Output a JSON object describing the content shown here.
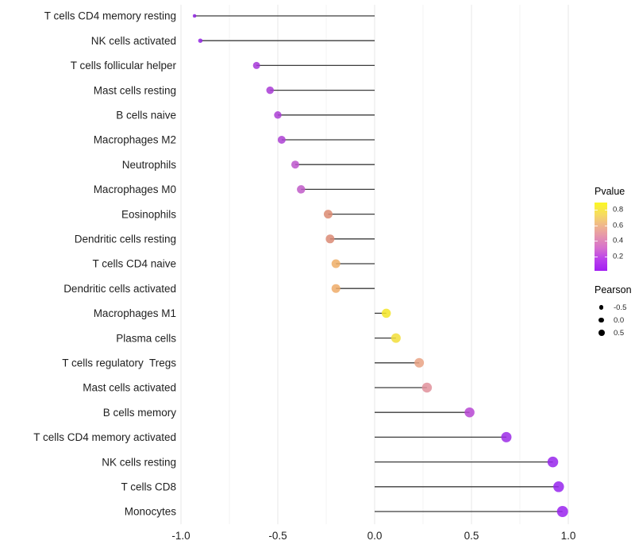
{
  "chart_data": {
    "type": "lollipop",
    "orientation": "horizontal",
    "title": "",
    "xlabel": "",
    "ylabel": "",
    "x_axis": {
      "range": [
        -1.07,
        1.07
      ],
      "major_ticks": [
        -1.0,
        -0.5,
        0.0,
        0.5,
        1.0
      ],
      "tick_labels": [
        "-1.0",
        "-0.5",
        "0.0",
        "0.5",
        "1.0"
      ],
      "minor_ticks": [
        -0.75,
        -0.25,
        0.25,
        0.75
      ]
    },
    "grid": "vertical major and minor gridlines only, light gray on white",
    "points": [
      {
        "label": "T cells CD4 memory resting",
        "pearson": -0.93,
        "color": "#8E22DF",
        "size": 4.5
      },
      {
        "label": "NK cells activated",
        "pearson": -0.9,
        "color": "#9326E3",
        "size": 5.5
      },
      {
        "label": "T cells follicular helper",
        "pearson": -0.61,
        "color": "#A637D8",
        "size": 9
      },
      {
        "label": "Mast cells resting",
        "pearson": -0.54,
        "color": "#A93BD6",
        "size": 9.5
      },
      {
        "label": "B cells naive",
        "pearson": -0.5,
        "color": "#AB3ED5",
        "size": 9.5
      },
      {
        "label": "Macrophages M2",
        "pearson": -0.48,
        "color": "#AD41D4",
        "size": 10
      },
      {
        "label": "Neutrophils",
        "pearson": -0.41,
        "color": "#BC55CB",
        "size": 10
      },
      {
        "label": "Macrophages M0",
        "pearson": -0.38,
        "color": "#C05AC8",
        "size": 10.5
      },
      {
        "label": "Eosinophils",
        "pearson": -0.24,
        "color": "#DC8B72",
        "size": 11
      },
      {
        "label": "Dendritic cells resting",
        "pearson": -0.23,
        "color": "#DB8A74",
        "size": 11
      },
      {
        "label": "T cells CD4 naive",
        "pearson": -0.2,
        "color": "#EFAE66",
        "size": 11
      },
      {
        "label": "Dendritic cells activated",
        "pearson": -0.2,
        "color": "#EEAC68",
        "size": 11
      },
      {
        "label": "Macrophages M1",
        "pearson": 0.06,
        "color": "#F3E527",
        "size": 11.5
      },
      {
        "label": "Plasma cells",
        "pearson": 0.11,
        "color": "#F2DE39",
        "size": 12
      },
      {
        "label": "T cells regulatory  Tregs",
        "pearson": 0.23,
        "color": "#E9A284",
        "size": 12
      },
      {
        "label": "Mast cells activated",
        "pearson": 0.27,
        "color": "#E0919B",
        "size": 12.5
      },
      {
        "label": "B cells memory",
        "pearson": 0.49,
        "color": "#B747D3",
        "size": 12.5
      },
      {
        "label": "T cells CD4 memory activated",
        "pearson": 0.68,
        "color": "#9C2DE6",
        "size": 13
      },
      {
        "label": "NK cells resting",
        "pearson": 0.92,
        "color": "#9826EC",
        "size": 13.5
      },
      {
        "label": "T cells CD8",
        "pearson": 0.95,
        "color": "#9726ED",
        "size": 13.5
      },
      {
        "label": "Monocytes",
        "pearson": 0.97,
        "color": "#9A23EE",
        "size": 14
      }
    ],
    "legends": {
      "pvalue": {
        "title": "Pvalue",
        "tick_labels": [
          "0.8",
          "0.6",
          "0.4",
          "0.2"
        ],
        "gradient_stops": [
          "#FBF822",
          "#F6DC60",
          "#F0B88A",
          "#E593AE",
          "#D66FCE",
          "#BA41EC",
          "#A21FF2"
        ],
        "orientation": "vertical, yellow (high Pvalue) at top to purple (low Pvalue) at bottom"
      },
      "pearson": {
        "title": "Pearson",
        "items": [
          {
            "label": "-0.5",
            "diameter": 5.5
          },
          {
            "label": "0.0",
            "diameter": 6.7
          },
          {
            "label": "0.5",
            "diameter": 8
          }
        ],
        "dot_color": "#000000"
      }
    },
    "style": {
      "background": "#FFFFFF",
      "stem_color": "#3C3C3C",
      "grid_major_color": "#E7E7E7",
      "grid_minor_color": "#F3F3F3",
      "axis_text_color": "#1F1F1F",
      "point_opacity": 0.85
    }
  }
}
